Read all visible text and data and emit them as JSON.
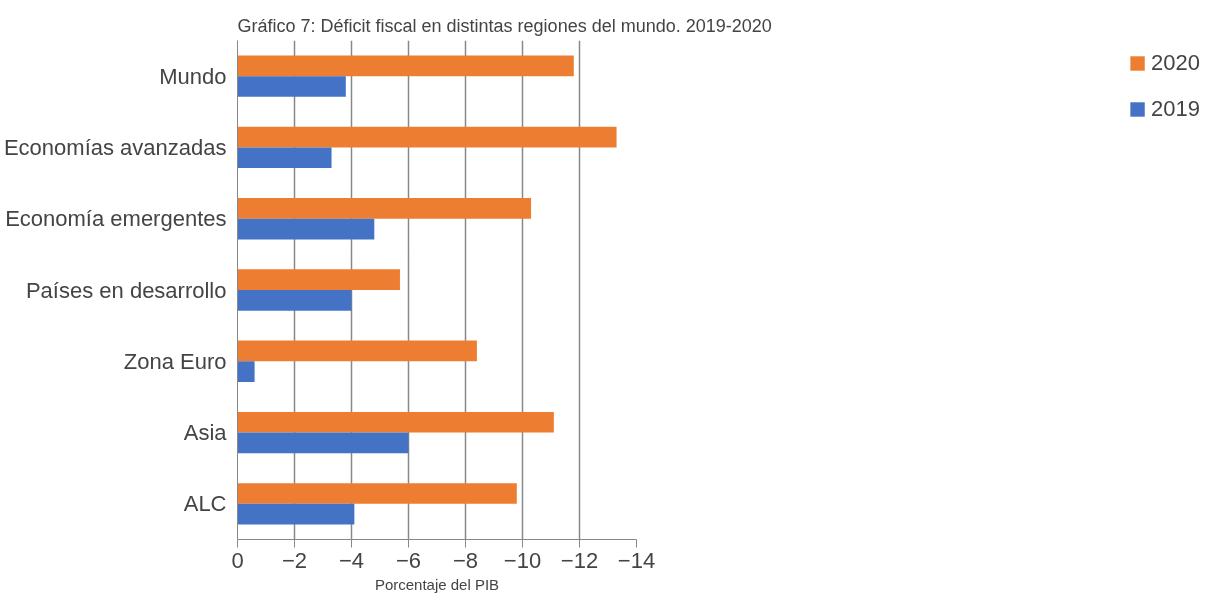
{
  "chart_data": {
    "type": "bar",
    "orientation": "horizontal",
    "title": "Gráfico 7: Déficit fiscal en distintas regiones del mundo. 2019-2020",
    "xlabel": "Porcentaje del PIB",
    "categories": [
      "Mundo",
      "Economías avanzadas",
      "Economía emergentes",
      "Países en desarrollo",
      "Zona Euro",
      "Asia",
      "ALC"
    ],
    "series": [
      {
        "name": "2020",
        "color": "#ed7d31",
        "values": [
          -11.8,
          -13.3,
          -10.3,
          -5.7,
          -8.4,
          -11.1,
          -9.8
        ]
      },
      {
        "name": "2019",
        "color": "#4472c4",
        "values": [
          -3.8,
          -3.3,
          -4.8,
          -4.0,
          -0.6,
          -6.0,
          -4.1
        ]
      }
    ],
    "xlim": [
      0,
      -14
    ],
    "xticks": [
      0,
      -2,
      -4,
      -6,
      -8,
      -10,
      -12,
      -14
    ],
    "grid": "x",
    "legend": "right"
  }
}
